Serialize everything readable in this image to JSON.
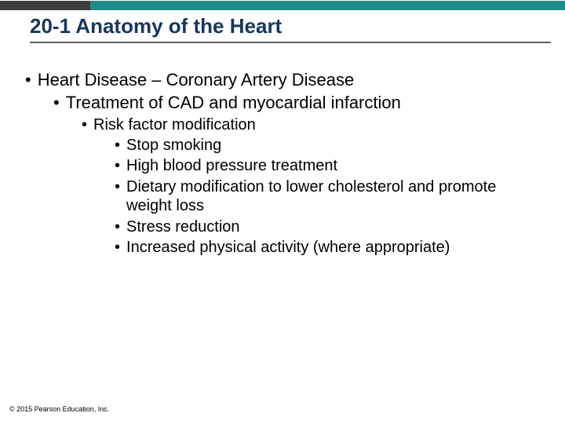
{
  "topbar": {
    "left_width_pct": 16,
    "right_width_pct": 84,
    "left_color": "#3f3f3f",
    "right_color": "#1f8a87"
  },
  "title": {
    "text": "20-1 Anatomy of the Heart",
    "color": "#17365d",
    "fontsize": 26,
    "rule_color": "#606060"
  },
  "content": {
    "fontsize_l1": 22,
    "fontsize_l3": 20,
    "bullet_char": "•",
    "l1": "Heart Disease – Coronary Artery Disease",
    "l2": "Treatment of CAD and myocardial infarction",
    "l3": "Risk factor modification",
    "l4_1": "Stop smoking",
    "l4_2": "High blood pressure treatment",
    "l4_3": "Dietary modification to lower cholesterol and promote weight loss",
    "l4_4": "Stress reduction",
    "l4_5": "Increased physical activity (where appropriate)"
  },
  "copyright": "© 2015 Pearson Education, Inc."
}
